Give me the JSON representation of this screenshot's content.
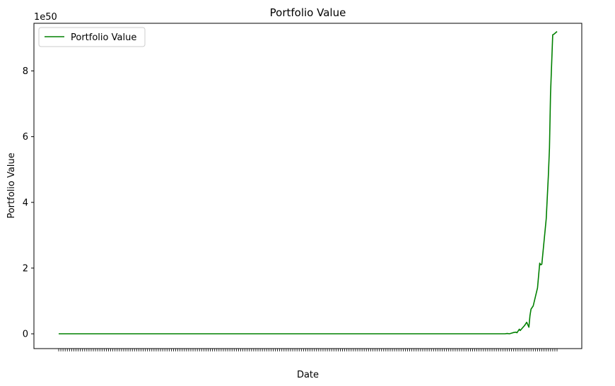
{
  "chart_data": {
    "type": "line",
    "title": "Portfolio Value",
    "xlabel": "Date",
    "ylabel": "Portfolio Value",
    "y_scale_label": "1e50",
    "y_ticks": [
      0,
      2,
      4,
      6,
      8
    ],
    "y_tick_labels": [
      "0",
      "2",
      "4",
      "6",
      "8"
    ],
    "ylim": [
      -0.45,
      9.45
    ],
    "x_tick_count": 230,
    "legend": {
      "placement": "top-left"
    },
    "grid": false,
    "series": [
      {
        "name": "Portfolio Value",
        "color": "#008000",
        "x": [
          0,
          100,
          200,
          205,
          206,
          207,
          208,
          209,
          210,
          211,
          211.5,
          212,
          212.6,
          213,
          215,
          216,
          217,
          217.5,
          218,
          219,
          221,
          222,
          222.5,
          223,
          225,
          226,
          226.5,
          227,
          228,
          228.6,
          229,
          230
        ],
        "y": [
          0,
          0,
          0,
          0,
          0,
          0.01,
          0,
          0.02,
          0.04,
          0.05,
          0.03,
          0.08,
          0.14,
          0.1,
          0.25,
          0.35,
          0.2,
          0.55,
          0.75,
          0.85,
          1.4,
          2.15,
          2.1,
          2.12,
          3.5,
          4.8,
          5.65,
          7.3,
          9.1,
          9.12,
          9.14,
          9.2
        ]
      }
    ]
  }
}
